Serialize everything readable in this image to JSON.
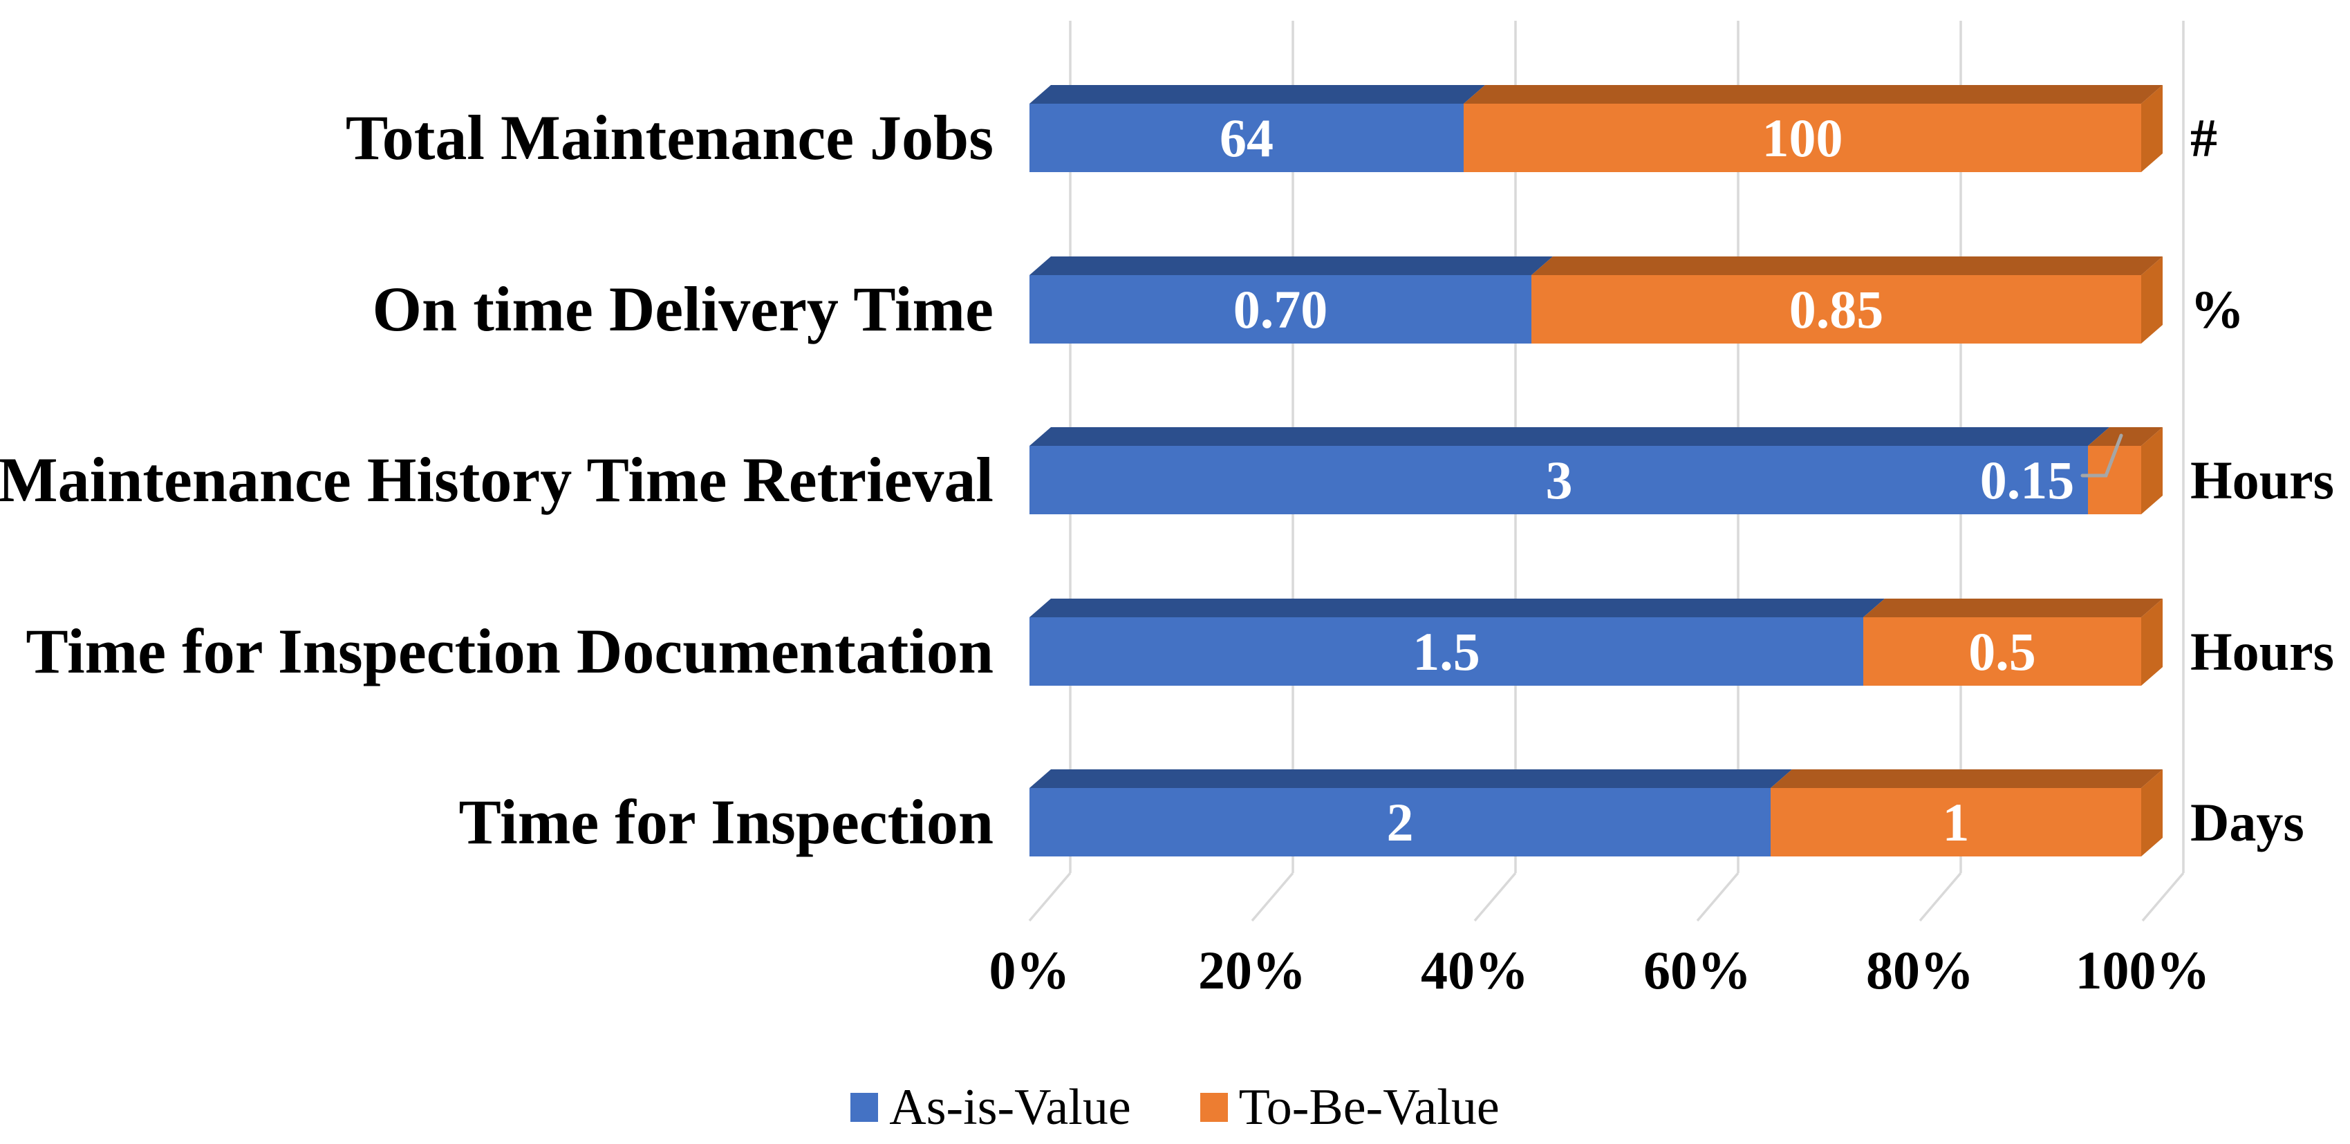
{
  "chart_data": {
    "type": "bar",
    "subtype": "stacked-100-percent-horizontal-3d",
    "title": "",
    "categories": [
      "Total Maintenance Jobs",
      "On time Delivery Time",
      "Maintenance History Time Retrieval",
      "Time for Inspection Documentation",
      "Time for Inspection"
    ],
    "units": [
      "#",
      "%",
      "Hours",
      "Hours",
      "Days"
    ],
    "series": [
      {
        "name": "As-is-Value",
        "color": "#4472C4",
        "values": [
          64,
          0.7,
          3,
          1.5,
          2
        ],
        "labels": [
          "64",
          "0.70",
          "3",
          "1.5",
          "2"
        ]
      },
      {
        "name": "To-Be-Value",
        "color": "#ED7D31",
        "values": [
          100,
          0.85,
          0.15,
          0.5,
          1
        ],
        "labels": [
          "100",
          "0.85",
          "0.15",
          "0.5",
          "1"
        ]
      }
    ],
    "x_axis": {
      "tick_labels": [
        "0%",
        "20%",
        "40%",
        "60%",
        "80%",
        "100%"
      ],
      "range_percent": [
        0,
        100
      ],
      "grid": true
    },
    "legend_position": "bottom"
  },
  "colors": {
    "as_is_front": "#4472C4",
    "as_is_top": "#2C4F8D",
    "to_be_front": "#ED7D31",
    "to_be_top": "#AE5A1E",
    "to_be_side": "#C8681E",
    "gridline": "#D9D9D9",
    "leader_line": "#A6A6A6",
    "label_text": "#000000",
    "bar_label_text": "#FFFFFF"
  }
}
